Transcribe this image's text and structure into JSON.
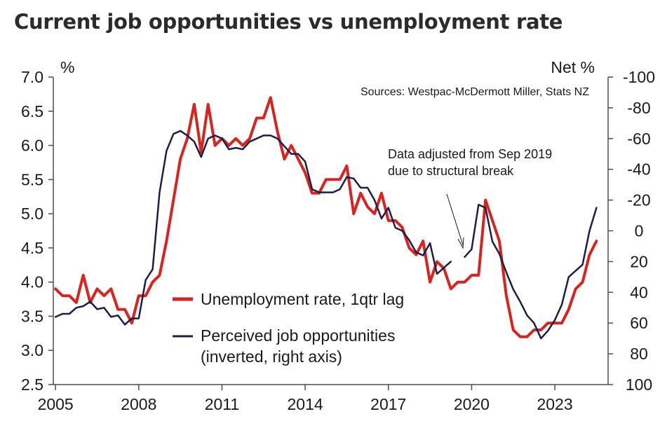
{
  "chart_data": {
    "type": "line",
    "title": "Current job opportunities vs unemployment rate",
    "left_axis": {
      "unit": "%",
      "ylim": [
        2.5,
        7.0
      ],
      "ticks": [
        "7.0",
        "6.5",
        "6.0",
        "5.5",
        "5.0",
        "4.5",
        "4.0",
        "3.5",
        "3.0",
        "2.5"
      ]
    },
    "right_axis": {
      "unit": "Net %",
      "inverted": true,
      "ylim": [
        -100,
        100
      ],
      "ticks": [
        "-100",
        "-80",
        "-60",
        "-40",
        "-20",
        "0",
        "20",
        "40",
        "60",
        "80",
        "100"
      ]
    },
    "x_ticks": [
      "2005",
      "2008",
      "2011",
      "2014",
      "2017",
      "2020",
      "2023"
    ],
    "source": "Sources: Westpac-McDermott Miller, Stats NZ",
    "annotation": [
      "Data adjusted from Sep 2019",
      "due to structural break"
    ],
    "colors": {
      "unemployment": "#d9231e",
      "opportunities": "#1e1d4c"
    },
    "series": [
      {
        "name": "Unemployment rate, 1qtr lag",
        "axis": "left",
        "x": [
          2005.0,
          2005.25,
          2005.5,
          2005.75,
          2006.0,
          2006.25,
          2006.5,
          2006.75,
          2007.0,
          2007.25,
          2007.5,
          2007.75,
          2008.0,
          2008.25,
          2008.5,
          2008.75,
          2009.0,
          2009.25,
          2009.5,
          2009.75,
          2010.0,
          2010.25,
          2010.5,
          2010.75,
          2011.0,
          2011.25,
          2011.5,
          2011.75,
          2012.0,
          2012.25,
          2012.5,
          2012.75,
          2013.0,
          2013.25,
          2013.5,
          2013.75,
          2014.0,
          2014.25,
          2014.5,
          2014.75,
          2015.0,
          2015.25,
          2015.5,
          2015.75,
          2016.0,
          2016.25,
          2016.5,
          2016.75,
          2017.0,
          2017.25,
          2017.5,
          2017.75,
          2018.0,
          2018.25,
          2018.5,
          2018.75,
          2019.0,
          2019.25,
          2019.5,
          2019.75,
          2020.0,
          2020.25,
          2020.5,
          2020.75,
          2021.0,
          2021.25,
          2021.5,
          2021.75,
          2022.0,
          2022.25,
          2022.5,
          2022.75,
          2023.0,
          2023.25,
          2023.5,
          2023.75,
          2024.0,
          2024.25,
          2024.5
        ],
        "values": [
          3.9,
          3.8,
          3.8,
          3.7,
          4.1,
          3.7,
          3.9,
          3.8,
          3.9,
          3.6,
          3.6,
          3.4,
          3.8,
          3.8,
          4.0,
          4.1,
          4.6,
          5.2,
          5.8,
          6.1,
          6.6,
          5.9,
          6.6,
          6.0,
          6.1,
          6.0,
          6.1,
          6.0,
          6.1,
          6.4,
          6.4,
          6.7,
          6.2,
          5.8,
          6.0,
          5.8,
          5.6,
          5.3,
          5.3,
          5.5,
          5.5,
          5.5,
          5.7,
          5.0,
          5.3,
          5.1,
          5.0,
          5.3,
          4.9,
          4.9,
          4.8,
          4.5,
          4.4,
          4.6,
          4.0,
          4.3,
          4.2,
          3.9,
          4.0,
          4.0,
          4.1,
          4.1,
          5.2,
          4.9,
          4.6,
          3.8,
          3.3,
          3.2,
          3.2,
          3.3,
          3.3,
          3.4,
          3.4,
          3.4,
          3.6,
          3.9,
          4.0,
          4.4,
          4.6
        ]
      },
      {
        "name": "Perceived job opportunities (inverted, right axis)",
        "axis": "right",
        "segments": [
          {
            "x": [
              2005.0,
              2005.25,
              2005.5,
              2005.75,
              2006.0,
              2006.25,
              2006.5,
              2006.75,
              2007.0,
              2007.25,
              2007.5,
              2007.75,
              2008.0,
              2008.25,
              2008.5,
              2008.75,
              2009.0,
              2009.25,
              2009.5,
              2009.75,
              2010.0,
              2010.25,
              2010.5,
              2010.75,
              2011.0,
              2011.25,
              2011.5,
              2011.75,
              2012.0,
              2012.25,
              2012.5,
              2012.75,
              2013.0,
              2013.25,
              2013.5,
              2013.75,
              2014.0,
              2014.25,
              2014.5,
              2014.75,
              2015.0,
              2015.25,
              2015.5,
              2015.75,
              2016.0,
              2016.25,
              2016.5,
              2016.75,
              2017.0,
              2017.25,
              2017.5,
              2017.75,
              2018.0,
              2018.25,
              2018.5,
              2018.75,
              2019.0,
              2019.25
            ],
            "values": [
              56,
              54,
              54,
              50,
              49,
              46,
              51,
              50,
              56,
              55,
              61,
              57,
              57,
              32,
              25,
              -25,
              -52,
              -63,
              -65,
              -62,
              -58,
              -48,
              -60,
              -62,
              -60,
              -53,
              -54,
              -53,
              -58,
              -60,
              -62,
              -62,
              -60,
              -55,
              -50,
              -50,
              -45,
              -27,
              -25,
              -25,
              -25,
              -27,
              -35,
              -34,
              -28,
              -28,
              -20,
              -8,
              -15,
              -2,
              0,
              6,
              14,
              16,
              8,
              28,
              24,
              20
            ]
          },
          {
            "x": [
              2019.75,
              2020.0,
              2020.25,
              2020.5,
              2020.75,
              2021.0,
              2021.25,
              2021.5,
              2021.75,
              2022.0,
              2022.25,
              2022.5,
              2022.75,
              2023.0,
              2023.25,
              2023.5,
              2023.75,
              2024.0,
              2024.25,
              2024.5
            ],
            "values": [
              17,
              12,
              -17,
              -15,
              7,
              15,
              27,
              38,
              46,
              55,
              60,
              70,
              65,
              58,
              48,
              30,
              26,
              22,
              0,
              -15
            ]
          }
        ]
      }
    ]
  }
}
